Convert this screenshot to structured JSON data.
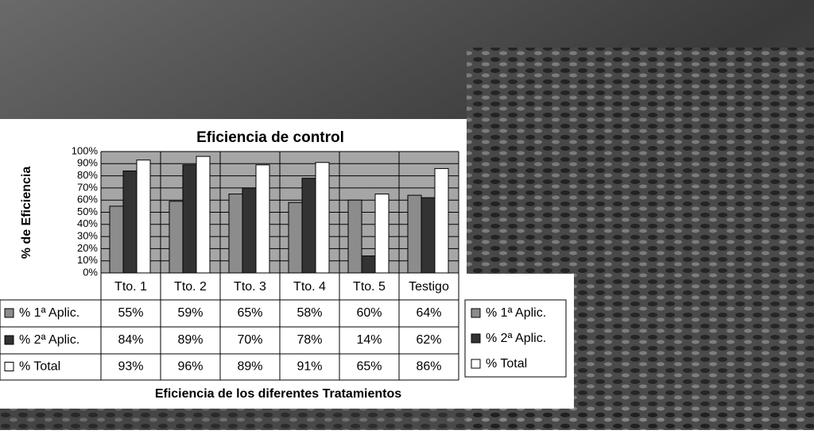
{
  "chart_data": {
    "type": "bar",
    "title": "Eficiencia de control",
    "y_label": "% de Eficiencia",
    "x_label": "Eficiencia de los diferentes Tratamientos",
    "categories": [
      "Tto. 1",
      "Tto. 2",
      "Tto. 3",
      "Tto. 4",
      "Tto. 5",
      "Testigo"
    ],
    "series": [
      {
        "name": "% 1ª Aplic.",
        "color": "#8c8c8c",
        "values": [
          55,
          59,
          65,
          58,
          60,
          64
        ],
        "value_labels": [
          "55%",
          "59%",
          "65%",
          "58%",
          "60%",
          "64%"
        ]
      },
      {
        "name": "% 2ª Aplic.",
        "color": "#333333",
        "values": [
          84,
          89,
          70,
          78,
          14,
          62
        ],
        "value_labels": [
          "84%",
          "89%",
          "70%",
          "78%",
          "14%",
          "62%"
        ]
      },
      {
        "name": "% Total",
        "color": "#ffffff",
        "values": [
          93,
          96,
          89,
          91,
          65,
          86
        ],
        "value_labels": [
          "93%",
          "96%",
          "89%",
          "91%",
          "65%",
          "86%"
        ]
      }
    ],
    "ylim": [
      0,
      100
    ],
    "yticks": [
      {
        "value": 0,
        "label": "0%"
      },
      {
        "value": 10,
        "label": "10%"
      },
      {
        "value": 20,
        "label": "20%"
      },
      {
        "value": 30,
        "label": "30%"
      },
      {
        "value": 40,
        "label": "40%"
      },
      {
        "value": 50,
        "label": "50%"
      },
      {
        "value": 60,
        "label": "60%"
      },
      {
        "value": 70,
        "label": "70%"
      },
      {
        "value": 80,
        "label": "80%"
      },
      {
        "value": 90,
        "label": "90%"
      },
      {
        "value": 100,
        "label": "100%"
      }
    ],
    "grid": true
  }
}
